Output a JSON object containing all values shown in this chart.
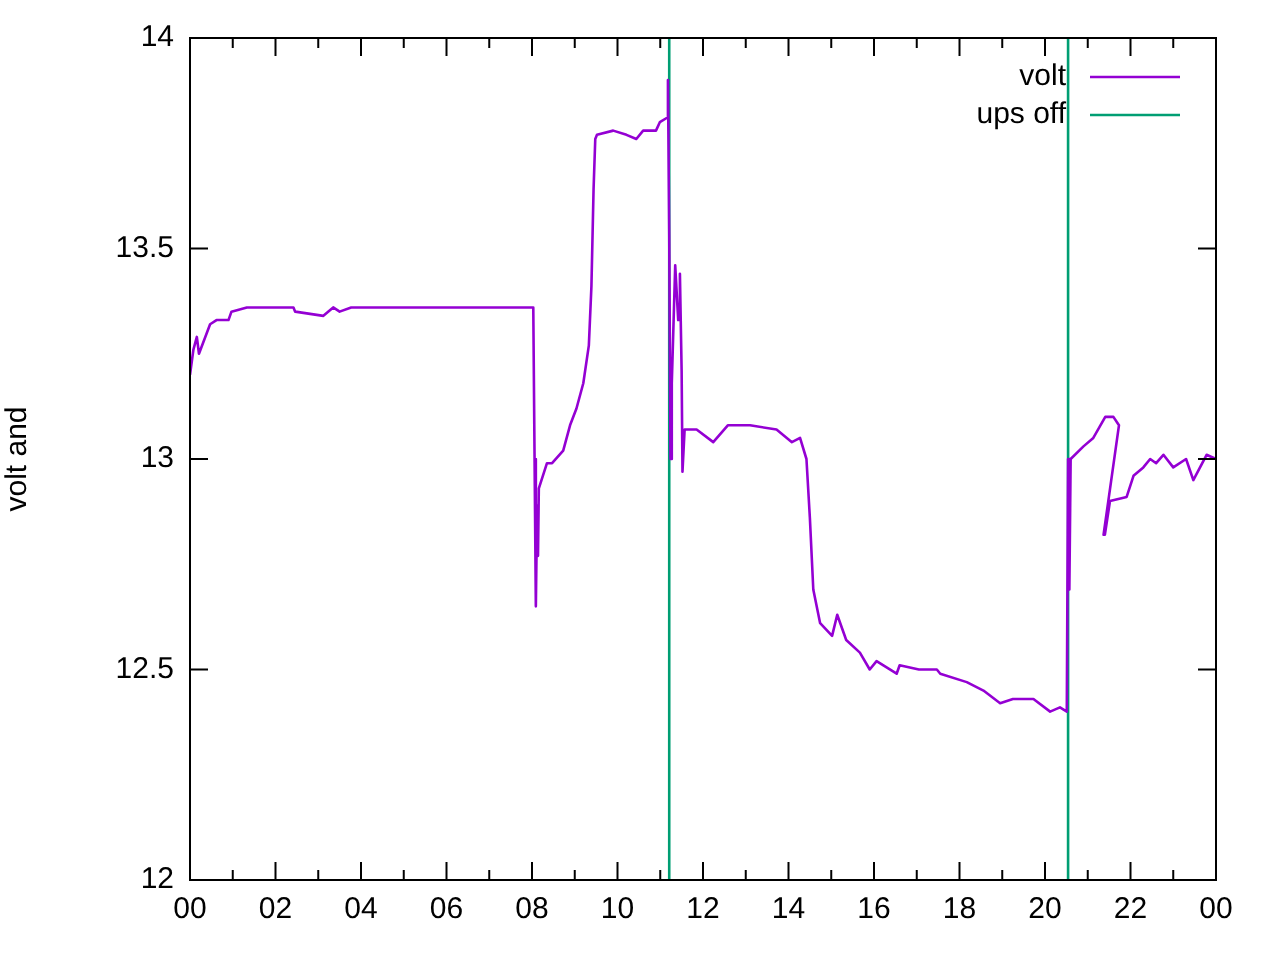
{
  "chart_data": {
    "type": "line",
    "ylabel": "volt and",
    "xlim": [
      0,
      24
    ],
    "ylim": [
      12,
      14
    ],
    "xticks": [
      {
        "value": 0,
        "label": "00"
      },
      {
        "value": 1,
        "label": null
      },
      {
        "value": 2,
        "label": "02"
      },
      {
        "value": 3,
        "label": null
      },
      {
        "value": 4,
        "label": "04"
      },
      {
        "value": 5,
        "label": null
      },
      {
        "value": 6,
        "label": "06"
      },
      {
        "value": 7,
        "label": null
      },
      {
        "value": 8,
        "label": "08"
      },
      {
        "value": 9,
        "label": null
      },
      {
        "value": 10,
        "label": "10"
      },
      {
        "value": 11,
        "label": null
      },
      {
        "value": 12,
        "label": "12"
      },
      {
        "value": 13,
        "label": null
      },
      {
        "value": 14,
        "label": "14"
      },
      {
        "value": 15,
        "label": null
      },
      {
        "value": 16,
        "label": "16"
      },
      {
        "value": 17,
        "label": null
      },
      {
        "value": 18,
        "label": "18"
      },
      {
        "value": 19,
        "label": null
      },
      {
        "value": 20,
        "label": "20"
      },
      {
        "value": 21,
        "label": null
      },
      {
        "value": 22,
        "label": "22"
      },
      {
        "value": 23,
        "label": null
      },
      {
        "value": 24,
        "label": "00"
      }
    ],
    "yticks": [
      12,
      12.5,
      13,
      13.5,
      14
    ],
    "grid": false,
    "legend": "top right",
    "marker": "none",
    "line_style": "solid",
    "series": [
      {
        "name": "volt",
        "color": "#9400d3",
        "x": [
          0,
          0.08,
          0.16,
          0.21,
          0.47,
          0.62,
          0.9,
          0.97,
          1.33,
          2.42,
          2.46,
          3.12,
          3.35,
          3.5,
          3.77,
          7.4,
          8.03,
          8.06,
          8.09,
          8.12,
          8.14,
          8.16,
          8.35,
          8.47,
          8.73,
          8.89,
          9.04,
          9.2,
          9.33,
          9.39,
          9.44,
          9.48,
          9.52,
          9.9,
          10.21,
          10.44,
          10.6,
          10.9,
          10.99,
          11.15,
          11.18,
          11.21,
          11.24,
          11.27,
          11.35,
          11.42,
          11.46,
          11.5,
          11.52,
          11.57,
          11.85,
          12.24,
          12.58,
          13.1,
          13.72,
          14.08,
          14.27,
          14.42,
          14.5,
          14.58,
          14.74,
          15.02,
          15.14,
          15.35,
          15.67,
          15.9,
          16.06,
          16.53,
          16.6,
          17.05,
          17.47,
          17.55,
          18.17,
          18.56,
          18.95,
          19.25,
          19.73,
          20.12,
          20.35,
          20.51,
          20.54,
          20.57,
          20.6,
          20.9,
          21.13,
          21.41,
          21.6,
          21.73,
          21.37,
          21.4,
          21.52,
          21.91,
          22.07,
          22.3,
          22.46,
          22.6,
          22.77,
          23.0,
          23.3,
          23.47,
          23.78,
          24.0
        ],
        "values": [
          13.2,
          13.26,
          13.29,
          13.25,
          13.32,
          13.33,
          13.33,
          13.35,
          13.36,
          13.36,
          13.35,
          13.34,
          13.36,
          13.35,
          13.36,
          13.36,
          13.36,
          13.0,
          12.65,
          12.89,
          12.77,
          12.93,
          12.99,
          12.99,
          13.02,
          13.08,
          13.12,
          13.18,
          13.27,
          13.41,
          13.64,
          13.76,
          13.77,
          13.78,
          13.77,
          13.76,
          13.78,
          13.78,
          13.8,
          13.81,
          13.9,
          13.53,
          13.0,
          13.18,
          13.46,
          13.33,
          13.44,
          13.21,
          12.97,
          13.07,
          13.07,
          13.04,
          13.08,
          13.08,
          13.07,
          13.04,
          13.05,
          13.0,
          12.86,
          12.69,
          12.61,
          12.58,
          12.63,
          12.57,
          12.54,
          12.5,
          12.52,
          12.49,
          12.51,
          12.5,
          12.5,
          12.49,
          12.47,
          12.45,
          12.42,
          12.43,
          12.43,
          12.4,
          12.41,
          12.4,
          13.0,
          12.69,
          13.0,
          13.03,
          13.05,
          13.1,
          13.1,
          13.08,
          12.82,
          12.82,
          12.9,
          12.91,
          12.96,
          12.98,
          13.0,
          12.99,
          13.01,
          12.98,
          13.0,
          12.95,
          13.01,
          13.0
        ]
      },
      {
        "name": "ups off",
        "color": "#009e73",
        "x": [
          11.21,
          11.21,
          null,
          20.54,
          20.54
        ],
        "values": [
          12,
          14,
          null,
          12,
          14
        ]
      }
    ]
  }
}
